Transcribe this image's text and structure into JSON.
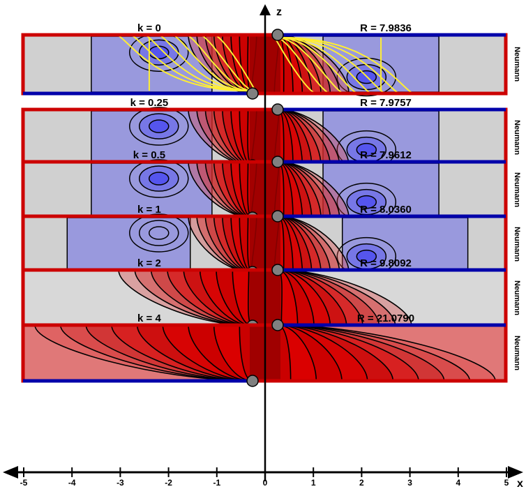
{
  "axes": {
    "x_label": "x",
    "z_label": "z",
    "x_ticks": [
      "-5",
      "-4",
      "-3",
      "-2",
      "-1",
      "0",
      "1",
      "2",
      "3",
      "4",
      "5"
    ]
  },
  "boundary_label": "Neumann",
  "panels": [
    {
      "k": "k = 0",
      "R": "R = 7.9836",
      "k_value": 0,
      "R_value": 7.9836
    },
    {
      "k": "k = 0.25",
      "R": "R = 7.9757",
      "k_value": 0.25,
      "R_value": 7.9757
    },
    {
      "k": "k = 0.5",
      "R": "R = 7.9612",
      "k_value": 0.5,
      "R_value": 7.9612
    },
    {
      "k": "k = 1",
      "R": "R = 8.0360",
      "k_value": 1,
      "R_value": 8.036
    },
    {
      "k": "k = 2",
      "R": "R = 9.8092",
      "k_value": 2,
      "R_value": 9.8092
    },
    {
      "k": "k = 4",
      "R": "R = 21.0790",
      "k_value": 4,
      "R_value": 21.079
    }
  ],
  "colors": {
    "boundary_red": "#cc0000",
    "boundary_blue": "#0000aa",
    "neutral_gray": "#d0d0d0",
    "cold_blue": "#9999dd",
    "hot_red": "#cc0000",
    "streamline_yellow": "#ffee33",
    "node_gray": "#808080"
  }
}
